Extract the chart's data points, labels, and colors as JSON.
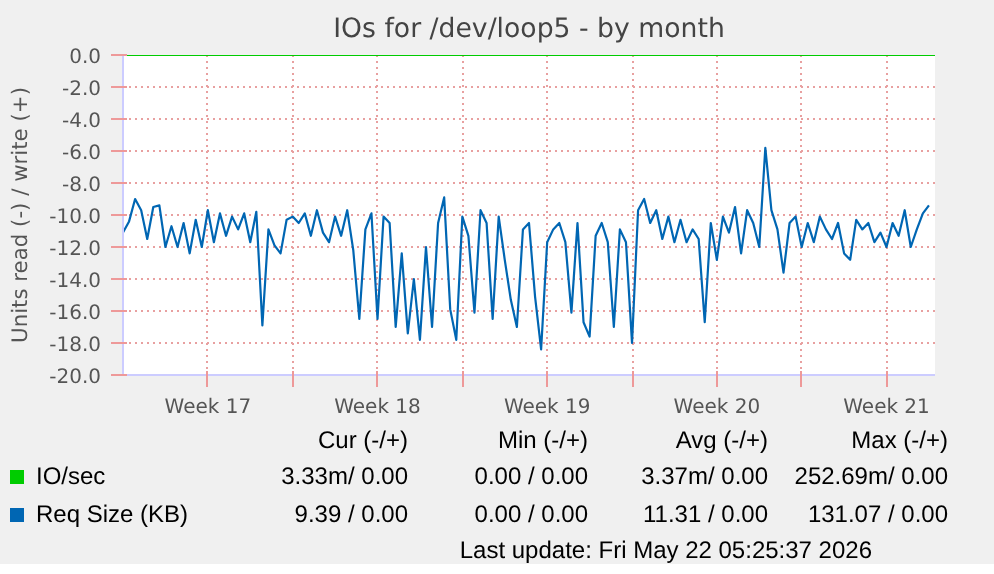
{
  "chart_data": {
    "type": "line",
    "title": "IOs for /dev/loop5 - by month",
    "ylabel": "Units read (-) / write (+)",
    "xlim": [
      "2026-04-20T00:00",
      "2026-05-23T12:00"
    ],
    "ylim": [
      -20,
      0
    ],
    "xticks": [
      {
        "value": "2026-04-23T12:00",
        "label": "Week 17"
      },
      {
        "value": "2026-04-27",
        "label": null
      },
      {
        "value": "2026-04-30T12:00",
        "label": "Week 18"
      },
      {
        "value": "2026-05-04",
        "label": null
      },
      {
        "value": "2026-05-07T12:00",
        "label": "Week 19"
      },
      {
        "value": "2026-05-11",
        "label": null
      },
      {
        "value": "2026-05-14T12:00",
        "label": "Week 20"
      },
      {
        "value": "2026-05-18",
        "label": null
      },
      {
        "value": "2026-05-21T12:00",
        "label": "Week 21"
      }
    ],
    "yticks": [
      {
        "value": 0,
        "label": "0.0"
      },
      {
        "value": -2,
        "label": "-2.0"
      },
      {
        "value": -4,
        "label": "-4.0"
      },
      {
        "value": -6,
        "label": "-6.0"
      },
      {
        "value": -8,
        "label": "-8.0"
      },
      {
        "value": -10,
        "label": "-10.0"
      },
      {
        "value": -12,
        "label": "-12.0"
      },
      {
        "value": -14,
        "label": "-14.0"
      },
      {
        "value": -16,
        "label": "-16.0"
      },
      {
        "value": -18,
        "label": "-18.0"
      },
      {
        "value": -20,
        "label": "-20.0"
      }
    ],
    "grid": true,
    "legend": "bottom",
    "series": [
      {
        "name": "IO/sec",
        "color": "#00cc00",
        "x": [
          "2026-04-20T00:00",
          "2026-05-23T12:00"
        ],
        "values": [
          0,
          0
        ]
      },
      {
        "name": "Req Size (KB)",
        "color": "#0066b3",
        "x": [
          "2026-04-20T00:00",
          "2026-04-20T06:00",
          "2026-04-20T12:00",
          "2026-04-20T18:00",
          "2026-04-21T00:00",
          "2026-04-21T06:00",
          "2026-04-21T12:00",
          "2026-04-21T18:00",
          "2026-04-22T00:00",
          "2026-04-22T06:00",
          "2026-04-22T12:00",
          "2026-04-22T18:00",
          "2026-04-23T00:00",
          "2026-04-23T06:00",
          "2026-04-23T12:00",
          "2026-04-23T18:00",
          "2026-04-24T00:00",
          "2026-04-24T06:00",
          "2026-04-24T12:00",
          "2026-04-24T18:00",
          "2026-04-25T00:00",
          "2026-04-25T06:00",
          "2026-04-25T12:00",
          "2026-04-25T18:00",
          "2026-04-26T00:00",
          "2026-04-26T06:00",
          "2026-04-26T12:00",
          "2026-04-26T18:00",
          "2026-04-27T00:00",
          "2026-04-27T06:00",
          "2026-04-27T12:00",
          "2026-04-27T18:00",
          "2026-04-28T00:00",
          "2026-04-28T06:00",
          "2026-04-28T12:00",
          "2026-04-28T18:00",
          "2026-04-29T00:00",
          "2026-04-29T06:00",
          "2026-04-29T12:00",
          "2026-04-29T18:00",
          "2026-04-30T00:00",
          "2026-04-30T06:00",
          "2026-04-30T12:00",
          "2026-04-30T18:00",
          "2026-05-01T00:00",
          "2026-05-01T06:00",
          "2026-05-01T12:00",
          "2026-05-01T18:00",
          "2026-05-02T00:00",
          "2026-05-02T06:00",
          "2026-05-02T12:00",
          "2026-05-02T18:00",
          "2026-05-03T00:00",
          "2026-05-03T06:00",
          "2026-05-03T12:00",
          "2026-05-03T18:00",
          "2026-05-04T00:00",
          "2026-05-04T06:00",
          "2026-05-04T12:00",
          "2026-05-04T18:00",
          "2026-05-05T00:00",
          "2026-05-05T06:00",
          "2026-05-05T12:00",
          "2026-05-05T18:00",
          "2026-05-06T00:00",
          "2026-05-06T06:00",
          "2026-05-06T12:00",
          "2026-05-06T18:00",
          "2026-05-07T00:00",
          "2026-05-07T06:00",
          "2026-05-07T12:00",
          "2026-05-07T18:00",
          "2026-05-08T00:00",
          "2026-05-08T06:00",
          "2026-05-08T12:00",
          "2026-05-08T18:00",
          "2026-05-09T00:00",
          "2026-05-09T06:00",
          "2026-05-09T12:00",
          "2026-05-09T18:00",
          "2026-05-10T00:00",
          "2026-05-10T06:00",
          "2026-05-10T12:00",
          "2026-05-10T18:00",
          "2026-05-11T00:00",
          "2026-05-11T06:00",
          "2026-05-11T12:00",
          "2026-05-11T18:00",
          "2026-05-12T00:00",
          "2026-05-12T06:00",
          "2026-05-12T12:00",
          "2026-05-12T18:00",
          "2026-05-13T00:00",
          "2026-05-13T06:00",
          "2026-05-13T12:00",
          "2026-05-13T18:00",
          "2026-05-14T00:00",
          "2026-05-14T06:00",
          "2026-05-14T12:00",
          "2026-05-14T18:00",
          "2026-05-15T00:00",
          "2026-05-15T06:00",
          "2026-05-15T12:00",
          "2026-05-15T18:00",
          "2026-05-16T00:00",
          "2026-05-16T06:00",
          "2026-05-16T12:00",
          "2026-05-16T18:00",
          "2026-05-17T00:00",
          "2026-05-17T06:00",
          "2026-05-17T12:00",
          "2026-05-17T18:00",
          "2026-05-18T00:00",
          "2026-05-18T06:00",
          "2026-05-18T12:00",
          "2026-05-18T18:00",
          "2026-05-19T00:00",
          "2026-05-19T06:00",
          "2026-05-19T12:00",
          "2026-05-19T18:00",
          "2026-05-20T00:00",
          "2026-05-20T06:00",
          "2026-05-20T12:00",
          "2026-05-20T18:00",
          "2026-05-21T00:00",
          "2026-05-21T06:00",
          "2026-05-21T12:00",
          "2026-05-21T18:00",
          "2026-05-22T00:00",
          "2026-05-22T06:00",
          "2026-05-22T12:00",
          "2026-05-22T18:00",
          "2026-05-23T00:00",
          "2026-05-23T06:00"
        ],
        "values": [
          -11.1,
          -10.4,
          -9.0,
          -9.7,
          -11.5,
          -9.5,
          -9.4,
          -12.0,
          -10.7,
          -12.0,
          -10.5,
          -12.4,
          -10.3,
          -12.0,
          -9.7,
          -11.7,
          -9.9,
          -11.3,
          -10.1,
          -10.9,
          -9.9,
          -11.7,
          -9.8,
          -16.9,
          -10.9,
          -11.9,
          -12.4,
          -10.3,
          -10.1,
          -10.5,
          -9.9,
          -11.3,
          -9.7,
          -11.1,
          -11.7,
          -10.1,
          -11.3,
          -9.7,
          -12.2,
          -16.5,
          -10.9,
          -9.9,
          -16.5,
          -10.1,
          -10.5,
          -17.0,
          -12.4,
          -17.4,
          -14.0,
          -17.8,
          -12.0,
          -17.0,
          -10.5,
          -8.9,
          -15.9,
          -17.8,
          -10.1,
          -11.3,
          -16.1,
          -9.7,
          -10.5,
          -16.5,
          -10.1,
          -12.8,
          -15.3,
          -17.0,
          -10.9,
          -10.5,
          -15.1,
          -18.4,
          -11.7,
          -10.9,
          -10.5,
          -11.7,
          -16.1,
          -10.5,
          -16.7,
          -17.6,
          -11.3,
          -10.5,
          -11.7,
          -17.0,
          -10.9,
          -11.7,
          -18.0,
          -9.7,
          -9.0,
          -10.5,
          -9.7,
          -11.5,
          -10.1,
          -11.7,
          -10.3,
          -11.7,
          -10.9,
          -11.5,
          -16.7,
          -10.5,
          -12.8,
          -10.1,
          -11.1,
          -9.5,
          -12.4,
          -9.7,
          -10.5,
          -12.0,
          -5.8,
          -9.7,
          -10.9,
          -13.6,
          -10.5,
          -10.1,
          -12.0,
          -10.5,
          -11.7,
          -10.1,
          -10.9,
          -11.5,
          -10.5,
          -12.4,
          -12.8,
          -10.3,
          -10.9,
          -10.5,
          -11.7,
          -11.1,
          -12.0,
          -10.5,
          -11.3,
          -9.7,
          -12.0,
          -10.9,
          -9.9,
          -9.4
        ]
      }
    ],
    "annotations": [
      "Cur (-/+)",
      "Min (-/+)",
      "Avg (-/+)",
      "Max (-/+)",
      "3.33m/ 0.00",
      "0.00 / 0.00",
      "3.37m/ 0.00",
      "252.69m/ 0.00",
      "9.39 / 0.00",
      "0.00 / 0.00",
      "11.31 / 0.00",
      "131.07 / 0.00",
      "Last update: Fri May 22 05:25:37 2026"
    ]
  }
}
